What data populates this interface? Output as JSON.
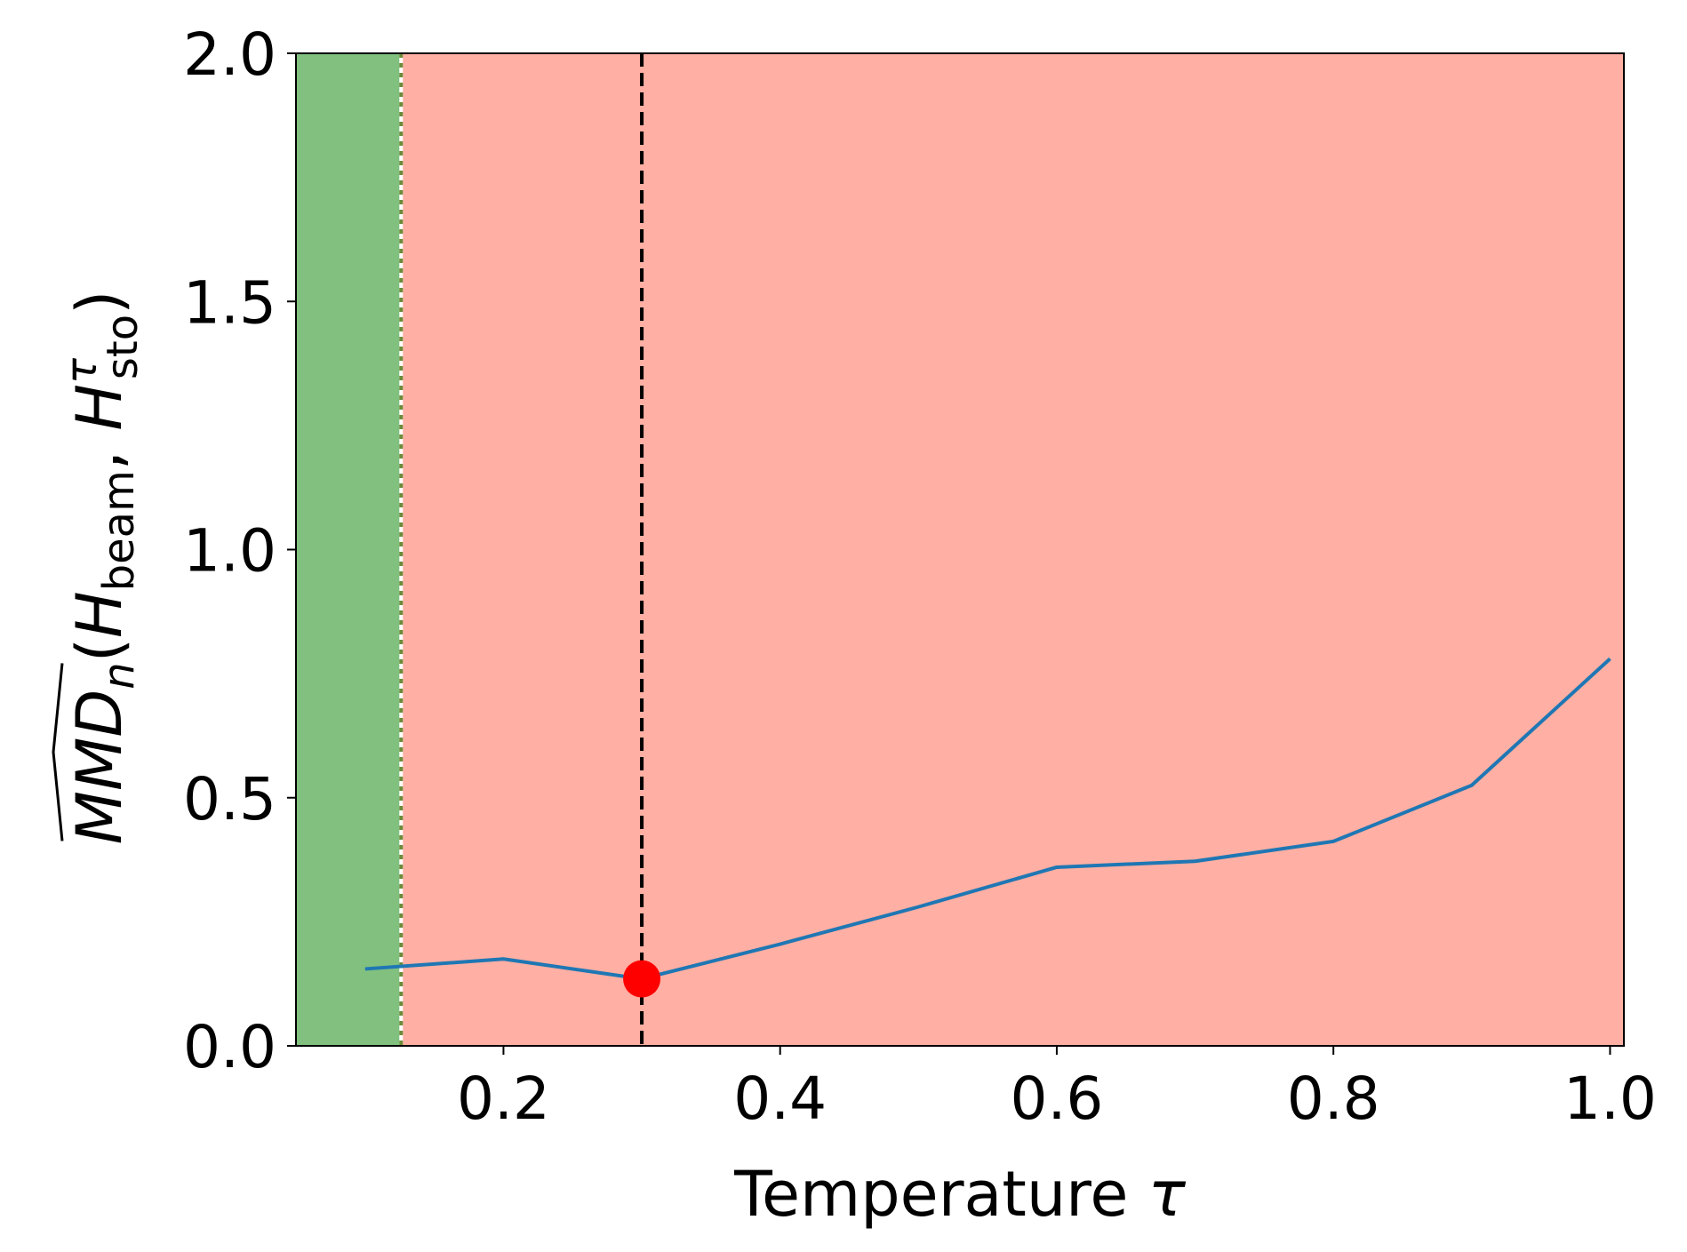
{
  "chart_data": {
    "type": "line",
    "xlabel": "Temperature",
    "xlabel_symbol": "τ",
    "ylabel": {
      "base": "MMD",
      "hat": true,
      "sub": "n",
      "open": "(",
      "arg1": "H",
      "arg1_sub": "beam",
      "sep": ", ",
      "arg2": "H",
      "arg2_sup": "τ",
      "arg2_sub": "sto",
      "close": ")"
    },
    "xlim": [
      0.05,
      1.01
    ],
    "ylim": [
      0.0,
      2.0
    ],
    "xticks": [
      0.2,
      0.4,
      0.6,
      0.8,
      1.0
    ],
    "xtick_labels": [
      "0.2",
      "0.4",
      "0.6",
      "0.8",
      "1.0"
    ],
    "yticks": [
      0.0,
      0.5,
      1.0,
      1.5,
      2.0
    ],
    "ytick_labels": [
      "0.0",
      "0.5",
      "1.0",
      "1.5",
      "2.0"
    ],
    "series": [
      {
        "x": [
          0.1,
          0.2,
          0.3,
          0.4,
          0.5,
          0.6,
          0.7,
          0.8,
          0.9,
          1.0
        ],
        "y": [
          0.155,
          0.175,
          0.135,
          0.205,
          0.28,
          0.36,
          0.372,
          0.412,
          0.525,
          0.78
        ],
        "color": "#1f77b4"
      }
    ],
    "marker": {
      "x": 0.3,
      "y": 0.135,
      "color": "#ff0000"
    },
    "regions": [
      {
        "x0": 0.05,
        "x1": 0.126,
        "color": "#81c07f"
      },
      {
        "x0": 0.126,
        "x1": 1.01,
        "color": "#ffafa3"
      }
    ],
    "vlines": [
      {
        "x": 0.126,
        "color": "#ffffff",
        "style": "solid"
      },
      {
        "x": 0.126,
        "color": "#6b8c3a",
        "style": "dotted"
      },
      {
        "x": 0.3,
        "color": "#000000",
        "style": "dashed"
      }
    ],
    "grid": false,
    "legend": "none"
  }
}
